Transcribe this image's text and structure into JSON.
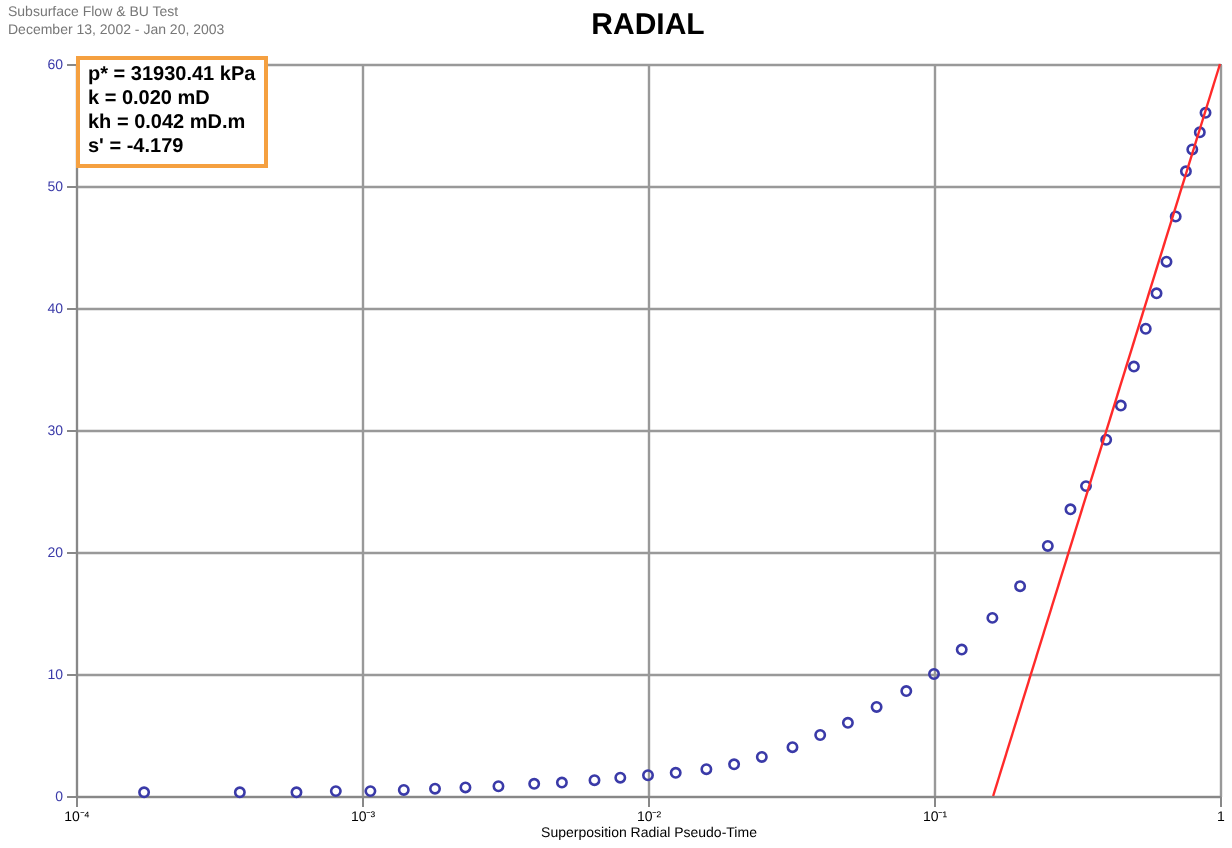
{
  "chart_data": {
    "type": "scatter",
    "title": "RADIAL",
    "subtitle": "Subsurface Flow & BU Test\nDecember 13, 2002 - Jan 20, 2003",
    "xlabel": "Superposition Radial Pseudo-Time",
    "annotations": [
      "p* = 31930.41 kPa",
      "k = 0.020 mD",
      "kh = 0.042 mD.m",
      "s' = -4.179"
    ],
    "log": "x",
    "grid": true,
    "xlim": [
      0.0001,
      1
    ],
    "xticks": [
      {
        "value": 0.0001,
        "label": "10⁻⁴"
      },
      {
        "value": 0.001,
        "label": "10⁻³"
      },
      {
        "value": 0.01,
        "label": "10⁻²"
      },
      {
        "value": 0.1,
        "label": "10⁻¹"
      },
      1
    ],
    "ylim": [
      0,
      60
    ],
    "yticks": [
      0,
      10,
      20,
      30,
      40,
      50,
      60
    ],
    "series": [
      {
        "marker": "circle",
        "color": "#3a3aa8",
        "x": [
          0.000173,
          0.000374,
          0.00059,
          0.00081,
          0.00107,
          0.0014,
          0.0018,
          0.0023,
          0.003,
          0.004,
          0.005,
          0.0065,
          0.008,
          0.01,
          0.0125,
          0.016,
          0.02,
          0.025,
          0.032,
          0.04,
          0.05,
          0.063,
          0.08,
          0.1,
          0.125,
          0.16,
          0.2,
          0.25,
          0.3,
          0.34,
          0.4,
          0.45,
          0.5,
          0.55,
          0.6,
          0.65,
          0.7,
          0.76,
          0.8,
          0.85,
          0.89
        ],
        "values": [
          0.3,
          0.3,
          0.3,
          0.4,
          0.4,
          0.5,
          0.6,
          0.7,
          0.8,
          1.0,
          1.1,
          1.3,
          1.5,
          1.7,
          1.9,
          2.2,
          2.6,
          3.2,
          4.0,
          5.0,
          6.0,
          7.3,
          8.6,
          10.0,
          12.0,
          14.6,
          17.2,
          20.5,
          23.5,
          25.4,
          29.2,
          32.0,
          35.2,
          38.3,
          41.2,
          43.8,
          47.5,
          51.2,
          53.0,
          54.4,
          56.0
        ]
      },
      {
        "type": "line",
        "color": "#ff2a2a",
        "x": [
          0.161,
          1
        ],
        "values": [
          0,
          60
        ]
      }
    ]
  }
}
